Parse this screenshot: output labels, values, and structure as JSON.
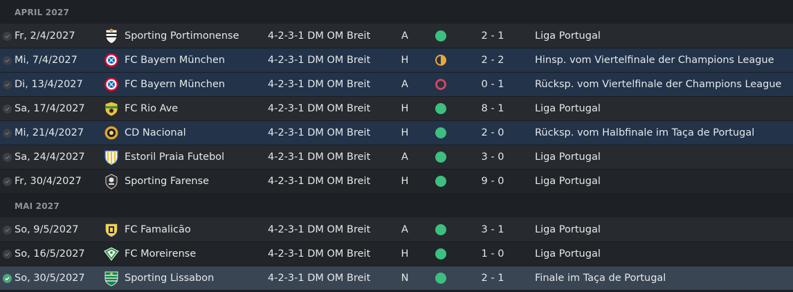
{
  "sections": [
    {
      "title": "APRIL 2027",
      "matches": [
        {
          "date": "Fr, 2/4/2027",
          "team": "Sporting Portimonense",
          "crest": "portimonense-crest-icon",
          "formation": "4-2-3-1 DM OM Breit",
          "venue": "A",
          "result": "win",
          "score": "2 - 1",
          "competition": "Liga Portugal",
          "highlight": "odd"
        },
        {
          "date": "Mi, 7/4/2027",
          "team": "FC Bayern München",
          "crest": "bayern-crest-icon",
          "formation": "4-2-3-1 DM OM Breit",
          "venue": "H",
          "result": "draw",
          "score": "2 - 2",
          "competition": "Hinsp. vom Viertelfinale der Champions League",
          "highlight": "cup"
        },
        {
          "date": "Di, 13/4/2027",
          "team": "FC Bayern München",
          "crest": "bayern-crest-icon",
          "formation": "4-2-3-1 DM OM Breit",
          "venue": "A",
          "result": "loss",
          "score": "0 - 1",
          "competition": "Rücksp. vom Viertelfinale der Champions League",
          "highlight": "cup"
        },
        {
          "date": "Sa, 17/4/2027",
          "team": "FC Rio Ave",
          "crest": "rio-ave-crest-icon",
          "formation": "4-2-3-1 DM OM Breit",
          "venue": "H",
          "result": "win",
          "score": "8 - 1",
          "competition": "Liga Portugal",
          "highlight": "odd"
        },
        {
          "date": "Mi, 21/4/2027",
          "team": "CD Nacional",
          "crest": "nacional-crest-icon",
          "formation": "4-2-3-1 DM OM Breit",
          "venue": "H",
          "result": "win",
          "score": "2 - 0",
          "competition": "Rücksp. vom Halbfinale im Taça de Portugal",
          "highlight": "cup"
        },
        {
          "date": "Sa, 24/4/2027",
          "team": "Estoril Praia Futebol",
          "crest": "estoril-crest-icon",
          "formation": "4-2-3-1 DM OM Breit",
          "venue": "A",
          "result": "win",
          "score": "3 - 0",
          "competition": "Liga Portugal",
          "highlight": "odd"
        },
        {
          "date": "Fr, 30/4/2027",
          "team": "Sporting Farense",
          "crest": "farense-crest-icon",
          "formation": "4-2-3-1 DM OM Breit",
          "venue": "H",
          "result": "win",
          "score": "9 - 0",
          "competition": "Liga Portugal",
          "highlight": "even"
        }
      ]
    },
    {
      "title": "MAI 2027",
      "matches": [
        {
          "date": "So, 9/5/2027",
          "team": "FC Famalicão",
          "crest": "famalicao-crest-icon",
          "formation": "4-2-3-1 DM OM Breit",
          "venue": "A",
          "result": "win",
          "score": "3 - 1",
          "competition": "Liga Portugal",
          "highlight": "odd"
        },
        {
          "date": "So, 16/5/2027",
          "team": "FC Moreirense",
          "crest": "moreirense-crest-icon",
          "formation": "4-2-3-1 DM OM Breit",
          "venue": "H",
          "result": "win",
          "score": "1 - 0",
          "competition": "Liga Portugal",
          "highlight": "even"
        },
        {
          "date": "So, 30/5/2027",
          "team": "Sporting Lissabon",
          "crest": "sporting-crest-icon",
          "formation": "4-2-3-1 DM OM Breit",
          "venue": "N",
          "result": "win",
          "score": "2 - 1",
          "competition": "Finale im Taça de Portugal",
          "highlight": "selected"
        }
      ]
    }
  ],
  "colors": {
    "win": "#3dbf7f",
    "draw": "#e8a83a",
    "loss": "#d2455a",
    "check_on": "#4aa77a"
  }
}
